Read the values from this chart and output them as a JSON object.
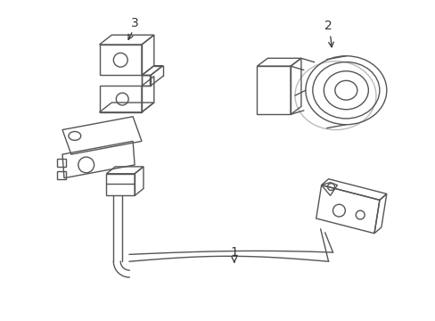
{
  "bg_color": "#ffffff",
  "line_color": "#555555",
  "lw": 1.0,
  "fig_w": 4.89,
  "fig_h": 3.6,
  "dpi": 100,
  "label1": "1",
  "label2": "2",
  "label3": "3"
}
